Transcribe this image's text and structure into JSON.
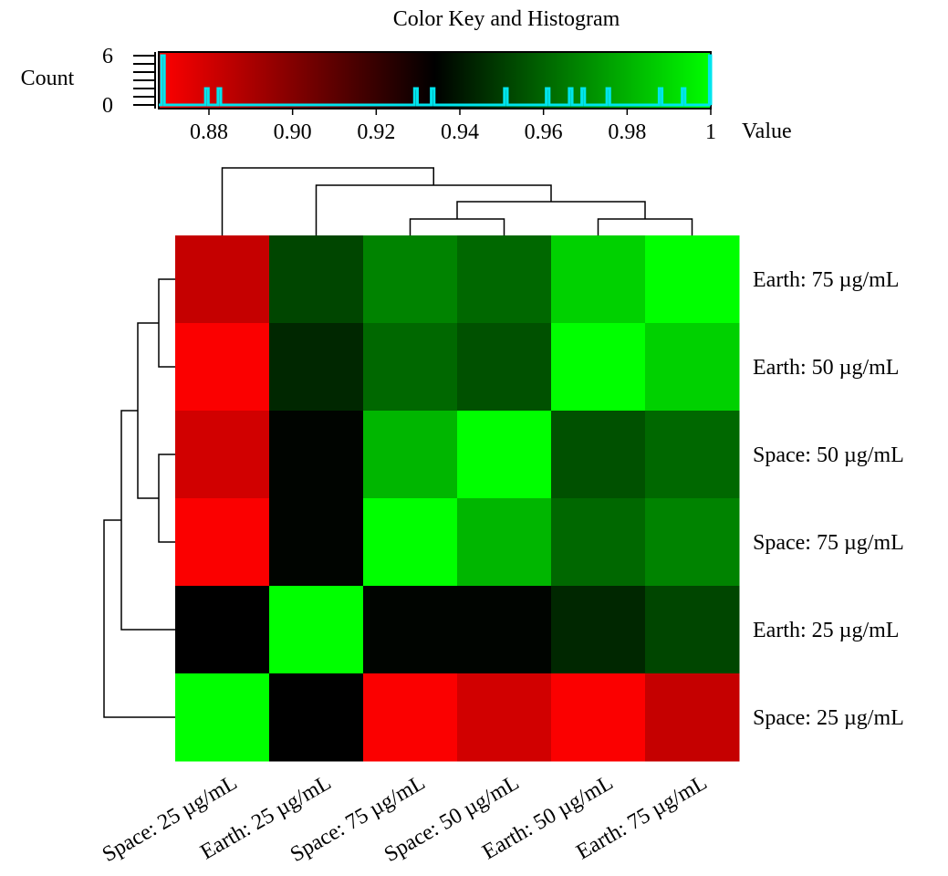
{
  "chart_data": {
    "type": "heatmap",
    "colors": {
      "low": "#ff0000",
      "mid": "#000000",
      "high": "#00ff00",
      "histogram": "#00e5ee"
    },
    "color_key": {
      "title": "Color Key and Histogram",
      "xlabel": "Value",
      "ylabel": "Count",
      "value_range": [
        0.868,
        1.0
      ],
      "x_ticks": [
        "0.88",
        "0.90",
        "0.92",
        "0.94",
        "0.96",
        "0.98",
        "1"
      ],
      "y_ticks": [
        "0",
        "6"
      ],
      "y_range": [
        0,
        6
      ],
      "histogram": [
        {
          "value": 0.869,
          "count": 6
        },
        {
          "value": 0.8795,
          "count": 2
        },
        {
          "value": 0.8825,
          "count": 2
        },
        {
          "value": 0.9295,
          "count": 2
        },
        {
          "value": 0.9335,
          "count": 2
        },
        {
          "value": 0.951,
          "count": 2
        },
        {
          "value": 0.961,
          "count": 2
        },
        {
          "value": 0.9665,
          "count": 2
        },
        {
          "value": 0.9695,
          "count": 2
        },
        {
          "value": 0.9755,
          "count": 2
        },
        {
          "value": 0.988,
          "count": 2
        },
        {
          "value": 0.9935,
          "count": 2
        },
        {
          "value": 1.0,
          "count": 6
        }
      ]
    },
    "row_labels": [
      "Earth: 75 µg/mL",
      "Earth: 50 µg/mL",
      "Space: 50 µg/mL",
      "Space: 75 µg/mL",
      "Earth: 25 µg/mL",
      "Space: 25 µg/mL"
    ],
    "column_labels": [
      "Space: 25 µg/mL",
      "Earth: 25 µg/mL",
      "Space: 75 µg/mL",
      "Space: 50 µg/mL",
      "Earth: 50 µg/mL",
      "Earth: 75 µg/mL"
    ],
    "matrix": [
      [
        0.883,
        0.952,
        0.968,
        0.961,
        0.988,
        1.0
      ],
      [
        0.869,
        0.944,
        0.961,
        0.955,
        1.0,
        0.988
      ],
      [
        0.88,
        0.935,
        0.981,
        1.0,
        0.955,
        0.961
      ],
      [
        0.869,
        0.935,
        1.0,
        0.981,
        0.961,
        0.968
      ],
      [
        0.934,
        1.0,
        0.935,
        0.935,
        0.944,
        0.952
      ],
      [
        1.0,
        0.934,
        0.869,
        0.88,
        0.869,
        0.883
      ]
    ]
  }
}
